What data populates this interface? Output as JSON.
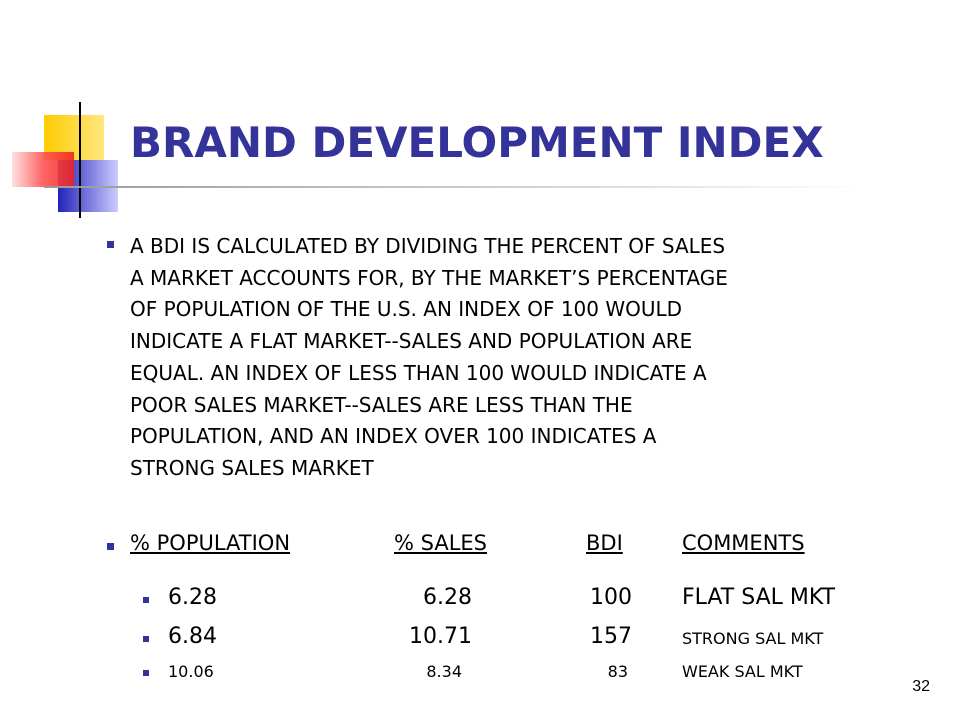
{
  "title": "BRAND DEVELOPMENT INDEX",
  "paragraph_lines": [
    "A BDI IS CALCULATED BY DIVIDING THE PERCENT OF SALES",
    "A MARKET ACCOUNTS FOR, BY THE MARKET’S PERCENTAGE",
    "OF POPULATION OF THE U.S.  AN INDEX OF 100 WOULD",
    "INDICATE A FLAT MARKET--SALES AND POPULATION ARE",
    "EQUAL.  AN INDEX OF LESS THAN 100 WOULD INDICATE A",
    "POOR SALES MARKET--SALES ARE LESS THAN THE",
    "POPULATION, AND AN INDEX OVER 100 INDICATES A",
    "STRONG SALES MARKET"
  ],
  "table": {
    "headers": [
      "% POPULATION",
      "% SALES",
      "BDI",
      "COMMENTS"
    ],
    "rows": [
      [
        "6.28",
        "6.28",
        "100",
        "FLAT SAL MKT"
      ],
      [
        "6.84",
        "10.71",
        "157",
        "STRONG SAL MKT"
      ],
      [
        "10.06",
        "8.34",
        "83",
        "WEAK SAL MKT"
      ]
    ]
  },
  "page_number": "32",
  "colors": {
    "title": "#333399",
    "bullet": "#333399",
    "logo_yellow": "#FFCC00",
    "logo_blue": "#3333CC",
    "logo_red": "#FF3333"
  }
}
